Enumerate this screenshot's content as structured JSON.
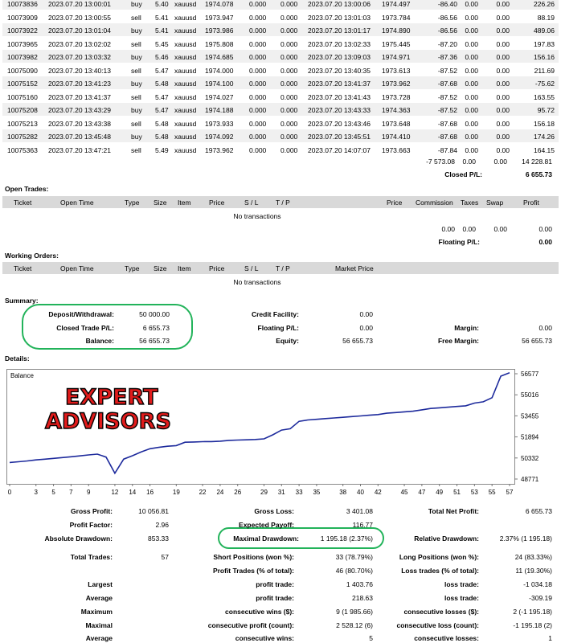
{
  "deals": [
    {
      "ticket": "10073836",
      "time": "2023.07.20 13:00:01",
      "type": "buy",
      "size": "5.40",
      "item": "xauusd",
      "price": "1974.078",
      "sl": "0.000",
      "tp": "0.000",
      "close_time": "2023.07.20 13:00:06",
      "close_price": "1974.497",
      "commission": "-86.40",
      "taxes": "0.00",
      "swap": "0.00",
      "profit": "226.26"
    },
    {
      "ticket": "10073909",
      "time": "2023.07.20 13:00:55",
      "type": "sell",
      "size": "5.41",
      "item": "xauusd",
      "price": "1973.947",
      "sl": "0.000",
      "tp": "0.000",
      "close_time": "2023.07.20 13:01:03",
      "close_price": "1973.784",
      "commission": "-86.56",
      "taxes": "0.00",
      "swap": "0.00",
      "profit": "88.19"
    },
    {
      "ticket": "10073922",
      "time": "2023.07.20 13:01:04",
      "type": "buy",
      "size": "5.41",
      "item": "xauusd",
      "price": "1973.986",
      "sl": "0.000",
      "tp": "0.000",
      "close_time": "2023.07.20 13:01:17",
      "close_price": "1974.890",
      "commission": "-86.56",
      "taxes": "0.00",
      "swap": "0.00",
      "profit": "489.06"
    },
    {
      "ticket": "10073965",
      "time": "2023.07.20 13:02:02",
      "type": "sell",
      "size": "5.45",
      "item": "xauusd",
      "price": "1975.808",
      "sl": "0.000",
      "tp": "0.000",
      "close_time": "2023.07.20 13:02:33",
      "close_price": "1975.445",
      "commission": "-87.20",
      "taxes": "0.00",
      "swap": "0.00",
      "profit": "197.83"
    },
    {
      "ticket": "10073982",
      "time": "2023.07.20 13:03:32",
      "type": "buy",
      "size": "5.46",
      "item": "xauusd",
      "price": "1974.685",
      "sl": "0.000",
      "tp": "0.000",
      "close_time": "2023.07.20 13:09:03",
      "close_price": "1974.971",
      "commission": "-87.36",
      "taxes": "0.00",
      "swap": "0.00",
      "profit": "156.16"
    },
    {
      "ticket": "10075090",
      "time": "2023.07.20 13:40:13",
      "type": "sell",
      "size": "5.47",
      "item": "xauusd",
      "price": "1974.000",
      "sl": "0.000",
      "tp": "0.000",
      "close_time": "2023.07.20 13:40:35",
      "close_price": "1973.613",
      "commission": "-87.52",
      "taxes": "0.00",
      "swap": "0.00",
      "profit": "211.69"
    },
    {
      "ticket": "10075152",
      "time": "2023.07.20 13:41:23",
      "type": "buy",
      "size": "5.48",
      "item": "xauusd",
      "price": "1974.100",
      "sl": "0.000",
      "tp": "0.000",
      "close_time": "2023.07.20 13:41:37",
      "close_price": "1973.962",
      "commission": "-87.68",
      "taxes": "0.00",
      "swap": "0.00",
      "profit": "-75.62"
    },
    {
      "ticket": "10075160",
      "time": "2023.07.20 13:41:37",
      "type": "sell",
      "size": "5.47",
      "item": "xauusd",
      "price": "1974.027",
      "sl": "0.000",
      "tp": "0.000",
      "close_time": "2023.07.20 13:41:43",
      "close_price": "1973.728",
      "commission": "-87.52",
      "taxes": "0.00",
      "swap": "0.00",
      "profit": "163.55"
    },
    {
      "ticket": "10075208",
      "time": "2023.07.20 13:43:29",
      "type": "buy",
      "size": "5.47",
      "item": "xauusd",
      "price": "1974.188",
      "sl": "0.000",
      "tp": "0.000",
      "close_time": "2023.07.20 13:43:33",
      "close_price": "1974.363",
      "commission": "-87.52",
      "taxes": "0.00",
      "swap": "0.00",
      "profit": "95.72"
    },
    {
      "ticket": "10075213",
      "time": "2023.07.20 13:43:38",
      "type": "sell",
      "size": "5.48",
      "item": "xauusd",
      "price": "1973.933",
      "sl": "0.000",
      "tp": "0.000",
      "close_time": "2023.07.20 13:43:46",
      "close_price": "1973.648",
      "commission": "-87.68",
      "taxes": "0.00",
      "swap": "0.00",
      "profit": "156.18"
    },
    {
      "ticket": "10075282",
      "time": "2023.07.20 13:45:48",
      "type": "buy",
      "size": "5.48",
      "item": "xauusd",
      "price": "1974.092",
      "sl": "0.000",
      "tp": "0.000",
      "close_time": "2023.07.20 13:45:51",
      "close_price": "1974.410",
      "commission": "-87.68",
      "taxes": "0.00",
      "swap": "0.00",
      "profit": "174.26"
    },
    {
      "ticket": "10075363",
      "time": "2023.07.20 13:47:21",
      "type": "sell",
      "size": "5.49",
      "item": "xauusd",
      "price": "1973.962",
      "sl": "0.000",
      "tp": "0.000",
      "close_time": "2023.07.20 14:07:07",
      "close_price": "1973.663",
      "commission": "-87.84",
      "taxes": "0.00",
      "swap": "0.00",
      "profit": "164.15"
    }
  ],
  "deal_totals": {
    "commission": "-7 573.08",
    "taxes": "0.00",
    "swap": "0.00",
    "profit": "14 228.81",
    "closed_pl_label": "Closed P/L:",
    "closed_pl_value": "6 655.73"
  },
  "open_trades": {
    "title": "Open Trades:",
    "headers": {
      "ticket": "Ticket",
      "open_time": "Open Time",
      "type": "Type",
      "size": "Size",
      "item": "Item",
      "price": "Price",
      "sl": "S / L",
      "tp": "T / P",
      "price2": "Price",
      "commission": "Commission",
      "taxes": "Taxes",
      "swap": "Swap",
      "profit": "Profit"
    },
    "empty": "No transactions",
    "totals": {
      "commission": "0.00",
      "taxes": "0.00",
      "swap": "0.00",
      "profit": "0.00"
    },
    "floating_label": "Floating P/L:",
    "floating_value": "0.00"
  },
  "working_orders": {
    "title": "Working Orders:",
    "headers": {
      "ticket": "Ticket",
      "open_time": "Open Time",
      "type": "Type",
      "size": "Size",
      "item": "Item",
      "price": "Price",
      "sl": "S / L",
      "tp": "T / P",
      "market_price": "Market Price"
    },
    "empty": "No transactions"
  },
  "summary": {
    "title": "Summary:",
    "deposit_label": "Deposit/Withdrawal:",
    "deposit_value": "50 000.00",
    "closed_label": "Closed Trade P/L:",
    "closed_value": "6 655.73",
    "balance_label": "Balance:",
    "balance_value": "56 655.73",
    "credit_label": "Credit Facility:",
    "credit_value": "0.00",
    "floating_label": "Floating P/L:",
    "floating_value": "0.00",
    "equity_label": "Equity:",
    "equity_value": "56 655.73",
    "margin_label": "Margin:",
    "margin_value": "0.00",
    "free_margin_label": "Free Margin:",
    "free_margin_value": "56 655.73"
  },
  "details_title": "Details:",
  "chart_data": {
    "type": "line",
    "legend": "Balance",
    "overlay_text": [
      "EXPERT",
      "ADVISORS"
    ],
    "x_ticks": [
      "0",
      "3",
      "5",
      "7",
      "9",
      "12",
      "14",
      "16",
      "19",
      "22",
      "24",
      "26",
      "29",
      "31",
      "33",
      "35",
      "38",
      "40",
      "42",
      "45",
      "47",
      "49",
      "51",
      "53",
      "55",
      "57"
    ],
    "y_ticks": [
      "56577",
      "55016",
      "53455",
      "51894",
      "50332",
      "48771"
    ],
    "ylim": [
      48771,
      56577
    ],
    "series": [
      {
        "name": "Balance",
        "color": "#1d2a9c",
        "x": [
          0,
          1,
          2,
          3,
          4,
          5,
          6,
          7,
          8,
          9,
          10,
          11,
          12,
          13,
          14,
          15,
          16,
          17,
          18,
          19,
          20,
          21,
          22,
          23,
          24,
          25,
          26,
          27,
          28,
          29,
          30,
          31,
          32,
          33,
          34,
          35,
          36,
          37,
          38,
          39,
          40,
          41,
          42,
          43,
          44,
          45,
          46,
          47,
          48,
          49,
          50,
          51,
          52,
          53,
          54,
          55,
          56,
          57
        ],
        "values": [
          50000,
          50050,
          50110,
          50190,
          50240,
          50300,
          50360,
          50420,
          50490,
          50560,
          50620,
          50400,
          49200,
          50250,
          50500,
          50780,
          51020,
          51120,
          51200,
          51250,
          51500,
          51520,
          51540,
          51550,
          51580,
          51640,
          51660,
          51680,
          51700,
          51750,
          52050,
          52400,
          52500,
          53050,
          53150,
          53200,
          53250,
          53300,
          53350,
          53400,
          53450,
          53500,
          53550,
          53650,
          53700,
          53750,
          53800,
          53900,
          54000,
          54050,
          54100,
          54150,
          54200,
          54400,
          54500,
          54800,
          56400,
          56655
        ]
      }
    ]
  },
  "stats": {
    "gross_profit_label": "Gross Profit:",
    "gross_profit": "10 056.81",
    "gross_loss_label": "Gross Loss:",
    "gross_loss": "3 401.08",
    "net_profit_label": "Total Net Profit:",
    "net_profit": "6 655.73",
    "profit_factor_label": "Profit Factor:",
    "profit_factor": "2.96",
    "expected_payoff_label": "Expected Payoff:",
    "expected_payoff": "116.77",
    "abs_dd_label": "Absolute Drawdown:",
    "abs_dd": "853.33",
    "max_dd_label": "Maximal Drawdown:",
    "max_dd": "1 195.18 (2.37%)",
    "rel_dd_label": "Relative Drawdown:",
    "rel_dd": "2.37% (1 195.18)",
    "total_trades_label": "Total Trades:",
    "total_trades": "57",
    "short_label": "Short Positions (won %):",
    "short": "33 (78.79%)",
    "long_label": "Long Positions (won %):",
    "long": "24 (83.33%)",
    "profit_trades_label": "Profit Trades (% of total):",
    "profit_trades": "46 (80.70%)",
    "loss_trades_label": "Loss trades (% of total):",
    "loss_trades": "11 (19.30%)",
    "largest_label": "Largest",
    "largest_profit_label": "profit trade:",
    "largest_profit": "1 403.76",
    "largest_loss_label": "loss trade:",
    "largest_loss": "-1 034.18",
    "average_label": "Average",
    "average_profit_label": "profit trade:",
    "average_profit": "218.63",
    "average_loss_label": "loss trade:",
    "average_loss": "-309.19",
    "maximum_label": "Maximum",
    "max_cons_wins_label": "consecutive wins ($):",
    "max_cons_wins": "9 (1 985.66)",
    "max_cons_losses_label": "consecutive losses ($):",
    "max_cons_losses": "2 (-1 195.18)",
    "maximal_label": "Maximal",
    "maximal_profit_label": "consecutive profit (count):",
    "maximal_profit": "2 528.12 (6)",
    "maximal_loss_label": "consecutive loss (count):",
    "maximal_loss": "-1 195.18 (2)",
    "avg2_label": "Average",
    "avg_cons_wins_label": "consecutive wins:",
    "avg_cons_wins": "5",
    "avg_cons_losses_label": "consecutive losses:",
    "avg_cons_losses": "1"
  }
}
